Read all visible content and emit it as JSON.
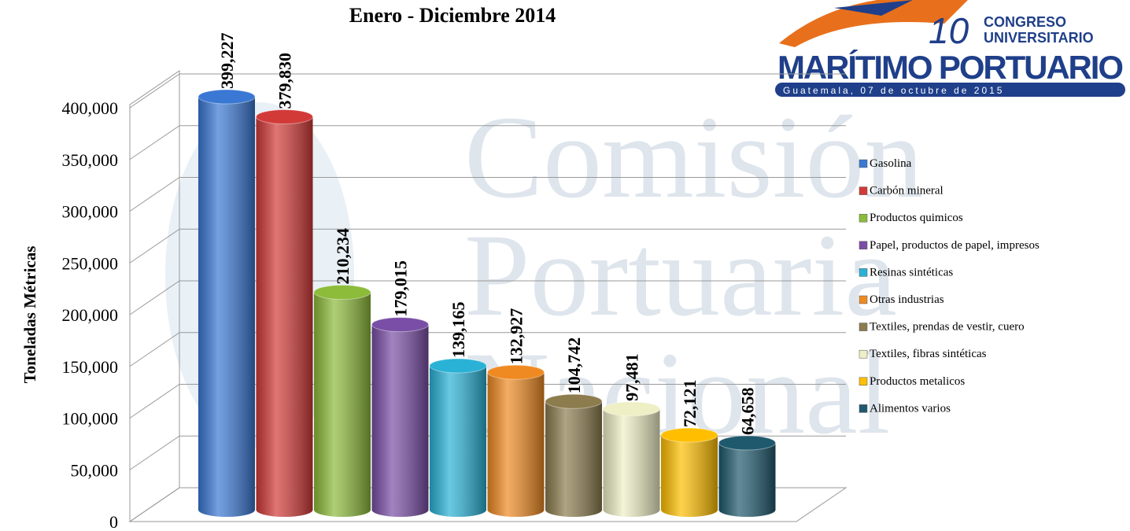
{
  "chart_data": {
    "type": "bar",
    "title": "Enero - Diciembre 2014",
    "y_label": "Toneladas Métricas",
    "ylim": [
      0,
      400000
    ],
    "yticks": [
      {
        "value": 0,
        "label": "0"
      },
      {
        "value": 50000,
        "label": "50,000"
      },
      {
        "value": 100000,
        "label": "100,000"
      },
      {
        "value": 150000,
        "label": "150,000"
      },
      {
        "value": 200000,
        "label": "200,000"
      },
      {
        "value": 250000,
        "label": "250,000"
      },
      {
        "value": 300000,
        "label": "300,000"
      },
      {
        "value": 350000,
        "label": "350,000"
      },
      {
        "value": 400000,
        "label": "400,000"
      }
    ],
    "grid": true,
    "legend": "right",
    "series": [
      {
        "name": "Gasolina",
        "color": "#3a78d4",
        "values": [
          399227
        ],
        "value_labels": [
          "399,227"
        ]
      },
      {
        "name": "Carbón mineral",
        "color": "#d23a38",
        "values": [
          379830
        ],
        "value_labels": [
          "379,830"
        ]
      },
      {
        "name": "Productos quimicos",
        "color": "#8dbb3a",
        "values": [
          210234
        ],
        "value_labels": [
          "210,234"
        ]
      },
      {
        "name": "Papel, productos de papel, impresos",
        "color": "#7a4ea6",
        "values": [
          179015
        ],
        "value_labels": [
          "179,015"
        ]
      },
      {
        "name": "Resinas sintéticas",
        "color": "#2ab2d6",
        "values": [
          139165
        ],
        "value_labels": [
          "139,165"
        ]
      },
      {
        "name": "Otras industrias",
        "color": "#ef8a22",
        "values": [
          132927
        ],
        "value_labels": [
          "132,927"
        ]
      },
      {
        "name": "Textiles, prendas de vestir, cuero",
        "color": "#8c7c4e",
        "values": [
          104742
        ],
        "value_labels": [
          "104,742"
        ]
      },
      {
        "name": "Textiles, fibras sintéticas",
        "color": "#efefc6",
        "values": [
          97481
        ],
        "value_labels": [
          "97,481"
        ]
      },
      {
        "name": "Productos metalicos",
        "color": "#ffbf00",
        "values": [
          72121
        ],
        "value_labels": [
          "72,121"
        ]
      },
      {
        "name": "Alimentos varios",
        "color": "#1f596d",
        "values": [
          64658
        ],
        "value_labels": [
          "64,658"
        ]
      }
    ]
  },
  "logo": {
    "number": "10",
    "line1": "CONGRESO",
    "line2": "UNIVERSITARIO",
    "main": "MARÍTIMO PORTUARIO",
    "sub": "Guatemala, 07 de octubre de 2015"
  },
  "watermark": [
    "Comisión",
    "Portuaria",
    "Nacional"
  ]
}
